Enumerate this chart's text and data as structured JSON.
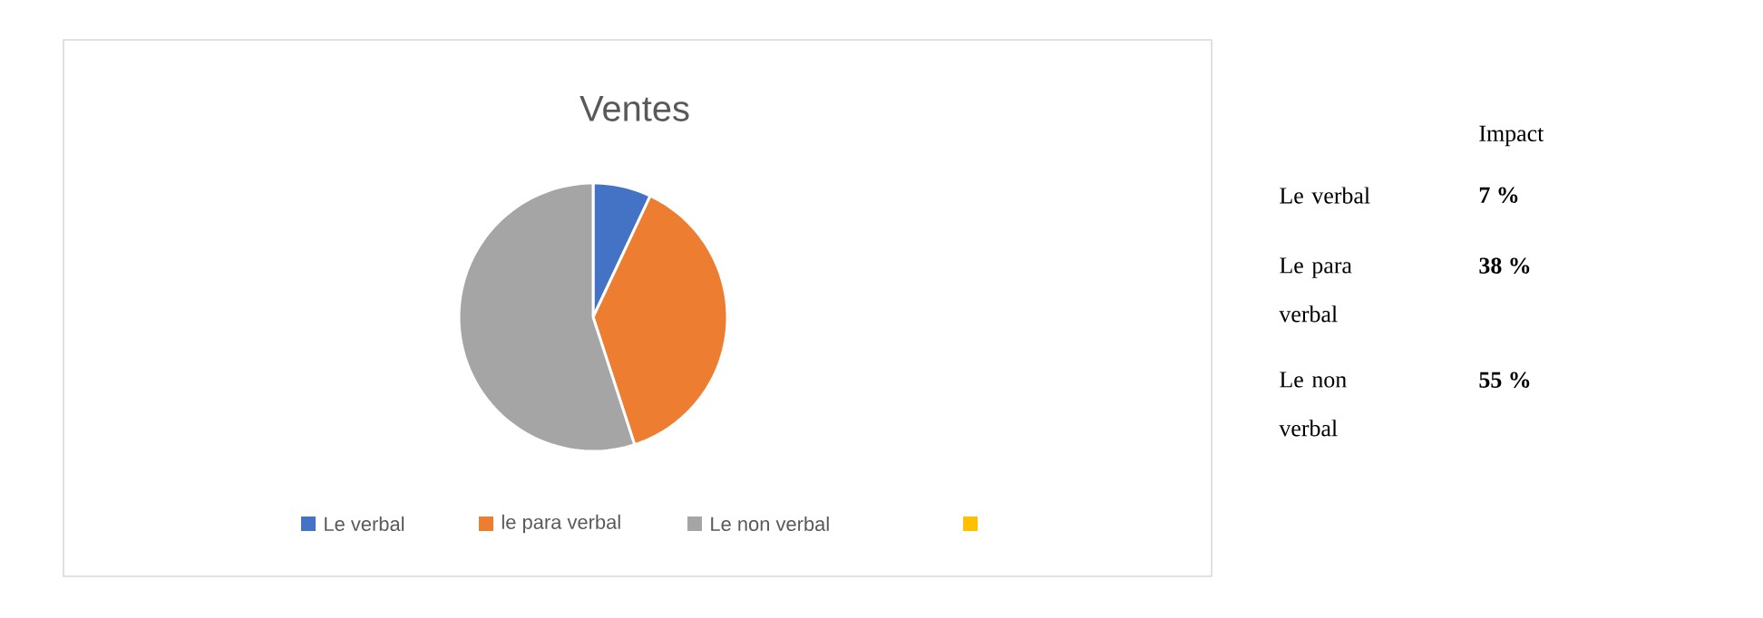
{
  "chart_data": [
    {
      "type": "pie",
      "title": "Ventes",
      "categories": [
        "Le verbal",
        "le para verbal",
        "Le non verbal",
        null
      ],
      "values": [
        7,
        38,
        55,
        0
      ],
      "colors": [
        "#4472c4",
        "#ed7d31",
        "#a5a5a5",
        "#ffc000"
      ],
      "legend": "bottom"
    },
    {
      "type": "other",
      "title": "Impact",
      "categories": [
        "Le verbal",
        "Le para verbal",
        "Le non verbal"
      ],
      "value_labels": [
        "7 %",
        "38 %",
        "55 %"
      ]
    }
  ]
}
